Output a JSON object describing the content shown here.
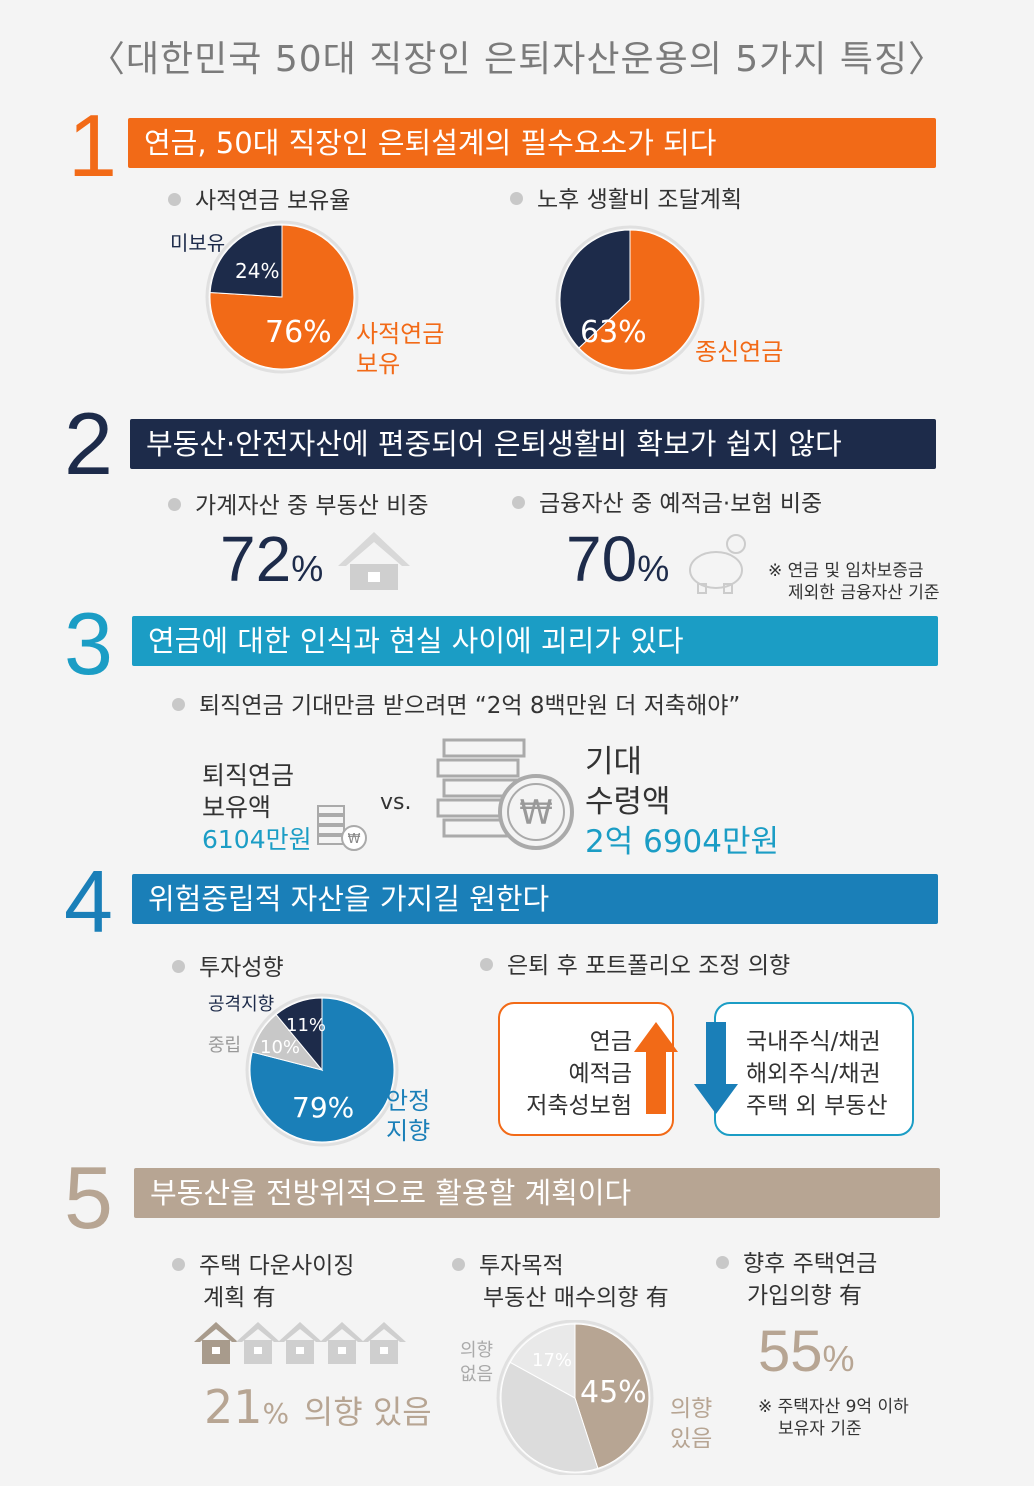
{
  "title": "〈대한민국 50대 직장인 은퇴자산운용의 5가지 특징〉",
  "colors": {
    "orange": "#f26a17",
    "navy": "#1d2b4a",
    "blue": "#1a98c8",
    "teal": "#1b9dc5",
    "beige": "#b7a593",
    "gray": "#c8c8c8"
  },
  "sections": [
    {
      "number": "1",
      "banner": "연금, 50대 직장인 은퇴설계의 필수요소가 되다",
      "bullets": [
        "사적연금 보유율",
        "노후 생활비 조달계획"
      ]
    },
    {
      "number": "2",
      "banner": "부동산·안전자산에 편중되어 은퇴생활비 확보가 쉽지 않다",
      "bullets": [
        "가계자산 중 부동산 비중",
        "금융자산 중 예적금·보험 비중"
      ],
      "stat1": "72",
      "stat2": "70",
      "unit": "%",
      "note": [
        "※ 연금 및 임차보증금",
        "제외한 금융자산 기준"
      ]
    },
    {
      "number": "3",
      "banner": "연금에 대한 인식과 현실 사이에 괴리가 있다",
      "bullet": "퇴직연금 기대만큼 받으려면 “2억 8백만원 더 저축해야”",
      "left_label": [
        "퇴직연금",
        "보유액"
      ],
      "left_value": "6104만원",
      "vs": "vs.",
      "right_label": [
        "기대",
        "수령액"
      ],
      "right_value": "2억 6904만원",
      "won": "₩"
    },
    {
      "number": "4",
      "banner": "위험중립적 자산을 가지길 원한다",
      "bullets": [
        "투자성향",
        "은퇴 후 포트폴리오 조정 의향"
      ],
      "increase": [
        "연금",
        "예적금",
        "저축성보험"
      ],
      "decrease": [
        "국내주식/채권",
        "해외주식/채권",
        "주택 외 부동산"
      ]
    },
    {
      "number": "5",
      "banner": "부동산을 전방위적으로 활용할 계획이다",
      "bullets": [
        [
          "주택 다운사이징",
          "계획 有"
        ],
        [
          "투자목적",
          "부동산 매수의향 有"
        ],
        [
          "향후 주택연금",
          "가입의향 有"
        ]
      ],
      "downsizing_value": "21",
      "downsizing_text": "의향 있음",
      "pension_value": "55",
      "unit": "%",
      "note": [
        "※ 주택자산 9억 이하",
        "보유자 기준"
      ]
    }
  ],
  "chart_data": [
    {
      "type": "pie",
      "title": "사적연금 보유율",
      "slices": [
        {
          "label": "사적연금 보유",
          "value": 76,
          "text": "76%",
          "color": "#f26a17"
        },
        {
          "label": "미보유",
          "value": 24,
          "text": "24%",
          "color": "#1d2b4a"
        }
      ]
    },
    {
      "type": "pie",
      "title": "노후 생활비 조달계획",
      "slices": [
        {
          "label": "종신연금",
          "value": 63,
          "text": "63%",
          "color": "#f26a17"
        },
        {
          "label": "",
          "value": 37,
          "text": "",
          "color": "#1d2b4a"
        }
      ]
    },
    {
      "type": "pie",
      "title": "투자성향",
      "slices": [
        {
          "label": "안정 지향",
          "value": 79,
          "text": "79%",
          "color": "#1a7fb8"
        },
        {
          "label": "중립",
          "value": 10,
          "text": "10%",
          "color": "#c8c8c8"
        },
        {
          "label": "공격지향",
          "value": 11,
          "text": "11%",
          "color": "#1d2b4a"
        }
      ]
    },
    {
      "type": "pie",
      "title": "투자목적 부동산 매수의향 有",
      "slices": [
        {
          "label": "의향 있음",
          "value": 45,
          "text": "45%",
          "color": "#b7a593"
        },
        {
          "label": "의향 없음",
          "value": 38,
          "text": "",
          "color": "#dcdcdc"
        },
        {
          "label": "",
          "value": 17,
          "text": "17%",
          "color": "#e9e9e9"
        }
      ]
    }
  ]
}
